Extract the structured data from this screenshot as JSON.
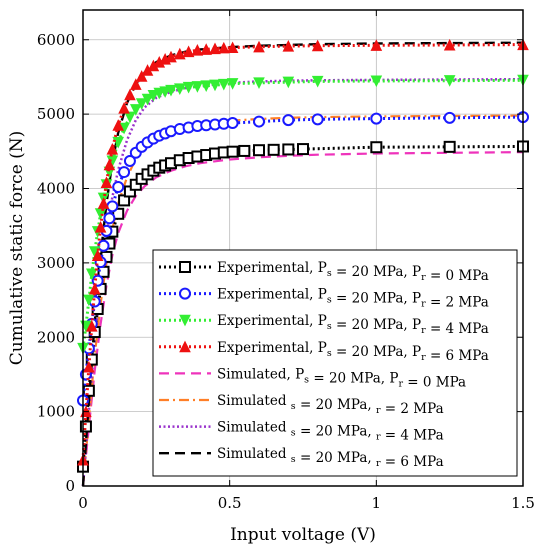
{
  "chart_data": {
    "type": "line",
    "xlabel": "Input voltage (V)",
    "ylabel": "Cumulative static force (N)",
    "xlim": [
      0,
      1.5
    ],
    "ylim": [
      0,
      6400
    ],
    "xticks": [
      0,
      0.5,
      1,
      1.5
    ],
    "xtick_labels": [
      "0",
      "0.5",
      "1",
      "1.5"
    ],
    "yticks": [
      0,
      1000,
      2000,
      3000,
      4000,
      5000,
      6000
    ],
    "ytick_labels": [
      "0",
      "1000",
      "2000",
      "3000",
      "4000",
      "5000",
      "6000"
    ],
    "grid": true,
    "legend_position": "bottom-right",
    "legend_sub_s": "s",
    "legend_sub_r": "r",
    "series": [
      {
        "legend_prefix": "Experimental, P",
        "legend_mid": " = 20 MPa, P",
        "legend_end": " = 0 MPa",
        "style": "experimental",
        "color": "#000000",
        "marker": "square",
        "x": [
          0,
          0.01,
          0.02,
          0.03,
          0.04,
          0.05,
          0.06,
          0.07,
          0.08,
          0.09,
          0.1,
          0.12,
          0.14,
          0.16,
          0.18,
          0.2,
          0.22,
          0.24,
          0.26,
          0.28,
          0.3,
          0.33,
          0.36,
          0.39,
          0.42,
          0.45,
          0.48,
          0.51,
          0.55,
          0.6,
          0.65,
          0.7,
          0.75,
          1.0,
          1.25,
          1.5
        ],
        "y": [
          260,
          800,
          1280,
          1700,
          2070,
          2380,
          2650,
          2880,
          3080,
          3260,
          3420,
          3660,
          3840,
          3960,
          4050,
          4130,
          4190,
          4240,
          4280,
          4310,
          4340,
          4380,
          4410,
          4430,
          4450,
          4470,
          4485,
          4495,
          4505,
          4515,
          4520,
          4525,
          4530,
          4555,
          4560,
          4565
        ]
      },
      {
        "legend_prefix": "Experimental, P",
        "legend_mid": " = 20 MPa, P",
        "legend_end": " = 2 MPa",
        "style": "experimental",
        "color": "#1a1aff",
        "marker": "circle",
        "x": [
          0,
          0.01,
          0.02,
          0.03,
          0.04,
          0.05,
          0.06,
          0.07,
          0.08,
          0.09,
          0.1,
          0.12,
          0.14,
          0.16,
          0.18,
          0.2,
          0.22,
          0.24,
          0.26,
          0.28,
          0.3,
          0.33,
          0.36,
          0.39,
          0.42,
          0.45,
          0.48,
          0.51,
          0.6,
          0.7,
          0.8,
          1.0,
          1.25,
          1.5
        ],
        "y": [
          1150,
          1500,
          1850,
          2180,
          2480,
          2760,
          3010,
          3230,
          3430,
          3600,
          3760,
          4020,
          4220,
          4370,
          4480,
          4560,
          4620,
          4670,
          4710,
          4740,
          4770,
          4800,
          4820,
          4840,
          4850,
          4860,
          4870,
          4880,
          4900,
          4920,
          4930,
          4940,
          4950,
          4960
        ]
      },
      {
        "legend_prefix": "Experimental, P",
        "legend_mid": " = 20 MPa, P",
        "legend_end": " = 4 MPa",
        "style": "experimental",
        "color": "#33ee33",
        "marker": "triangle-down",
        "x": [
          0,
          0.01,
          0.02,
          0.03,
          0.04,
          0.05,
          0.06,
          0.07,
          0.08,
          0.09,
          0.1,
          0.12,
          0.14,
          0.16,
          0.18,
          0.2,
          0.22,
          0.24,
          0.26,
          0.28,
          0.3,
          0.33,
          0.36,
          0.39,
          0.42,
          0.45,
          0.48,
          0.51,
          0.6,
          0.7,
          0.8,
          1.0,
          1.25,
          1.5
        ],
        "y": [
          1850,
          2150,
          2500,
          2850,
          3150,
          3420,
          3660,
          3870,
          4050,
          4220,
          4370,
          4620,
          4810,
          4960,
          5060,
          5140,
          5200,
          5250,
          5280,
          5300,
          5320,
          5340,
          5360,
          5370,
          5380,
          5390,
          5400,
          5410,
          5420,
          5430,
          5440,
          5445,
          5450,
          5455
        ]
      },
      {
        "legend_prefix": "Experimental, P",
        "legend_mid": " = 20 MPa, P",
        "legend_end": " = 6 MPa",
        "style": "experimental",
        "color": "#ee1111",
        "marker": "triangle-up",
        "x": [
          0,
          0.01,
          0.02,
          0.03,
          0.04,
          0.05,
          0.06,
          0.07,
          0.08,
          0.09,
          0.1,
          0.12,
          0.14,
          0.16,
          0.18,
          0.2,
          0.22,
          0.24,
          0.26,
          0.28,
          0.3,
          0.33,
          0.36,
          0.39,
          0.42,
          0.45,
          0.48,
          0.51,
          0.6,
          0.7,
          0.8,
          1.0,
          1.25,
          1.5
        ],
        "y": [
          350,
          1000,
          1600,
          2150,
          2650,
          3100,
          3480,
          3800,
          4080,
          4320,
          4530,
          4850,
          5080,
          5260,
          5400,
          5510,
          5590,
          5650,
          5700,
          5740,
          5770,
          5810,
          5840,
          5860,
          5870,
          5880,
          5890,
          5895,
          5905,
          5915,
          5920,
          5925,
          5930,
          5935
        ]
      },
      {
        "legend_prefix": "Simulated, P",
        "legend_mid": " = 20 MPa, P",
        "legend_end": " = 0 MPa",
        "style": "sim-dash",
        "color": "#ee33bb",
        "x": [
          0,
          0.02,
          0.04,
          0.06,
          0.08,
          0.1,
          0.12,
          0.15,
          0.18,
          0.21,
          0.25,
          0.3,
          0.35,
          0.4,
          0.5,
          0.6,
          0.7,
          0.8,
          1.0,
          1.25,
          1.5
        ],
        "y": [
          0,
          800,
          1550,
          2180,
          2700,
          3100,
          3400,
          3700,
          3900,
          4030,
          4150,
          4240,
          4300,
          4340,
          4390,
          4420,
          4440,
          4455,
          4470,
          4480,
          4490
        ]
      },
      {
        "legend_prefix": "Simulated ",
        "legend_mid": " = 20 MPa, ",
        "legend_end": " = 2 MPa",
        "style": "sim-dashdot",
        "color": "#ff7f27",
        "x": [
          0,
          0.02,
          0.04,
          0.06,
          0.08,
          0.1,
          0.12,
          0.15,
          0.18,
          0.21,
          0.25,
          0.3,
          0.35,
          0.4,
          0.5,
          0.6,
          0.7,
          0.8,
          1.0,
          1.25,
          1.5
        ],
        "y": [
          0,
          900,
          1750,
          2450,
          3000,
          3450,
          3800,
          4150,
          4400,
          4560,
          4700,
          4790,
          4840,
          4870,
          4910,
          4935,
          4950,
          4960,
          4970,
          4975,
          4980
        ]
      },
      {
        "legend_prefix": "Simulated ",
        "legend_mid": " = 20 MPa, ",
        "legend_end": " = 4 MPa",
        "style": "sim-dot",
        "color": "#9933cc",
        "x": [
          0,
          0.02,
          0.04,
          0.06,
          0.08,
          0.1,
          0.12,
          0.15,
          0.18,
          0.21,
          0.25,
          0.3,
          0.35,
          0.4,
          0.5,
          0.6,
          0.7,
          0.8,
          1.0,
          1.25,
          1.5
        ],
        "y": [
          0,
          1000,
          1950,
          2750,
          3380,
          3880,
          4250,
          4650,
          4920,
          5090,
          5220,
          5300,
          5350,
          5380,
          5420,
          5440,
          5450,
          5455,
          5460,
          5465,
          5470
        ]
      },
      {
        "legend_prefix": "Simulated ",
        "legend_mid": " = 20 MPa, ",
        "legend_end": " = 6 MPa",
        "style": "sim-dash-black",
        "color": "#000000",
        "x": [
          0,
          0.02,
          0.04,
          0.06,
          0.08,
          0.1,
          0.12,
          0.15,
          0.18,
          0.21,
          0.25,
          0.3,
          0.35,
          0.4,
          0.5,
          0.6,
          0.7,
          0.8,
          1.0,
          1.25,
          1.5
        ],
        "y": [
          0,
          1150,
          2200,
          3100,
          3800,
          4350,
          4750,
          5150,
          5400,
          5560,
          5700,
          5790,
          5840,
          5870,
          5900,
          5920,
          5930,
          5940,
          5950,
          5955,
          5960
        ]
      }
    ]
  }
}
